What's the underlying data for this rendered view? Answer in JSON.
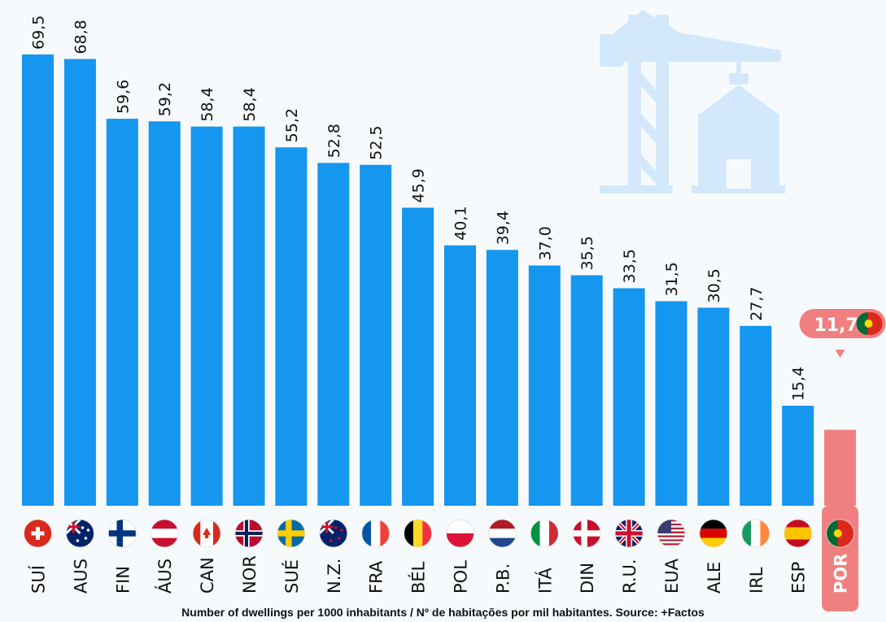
{
  "chart_data": {
    "type": "bar",
    "categories": [
      "SUÍ",
      "AUS",
      "FIN",
      "ÁUS",
      "CAN",
      "NOR",
      "SUÉ",
      "N.Z.",
      "FRA",
      "BÉL",
      "POL",
      "P.B.",
      "ITÁ",
      "DIN",
      "R.U.",
      "EUA",
      "ALE",
      "IRL",
      "ESP",
      "POR"
    ],
    "values": [
      69.5,
      68.8,
      59.6,
      59.2,
      58.4,
      58.4,
      55.2,
      52.8,
      52.5,
      45.9,
      40.1,
      39.4,
      37.0,
      35.5,
      33.5,
      31.5,
      30.5,
      27.7,
      15.4,
      11.7
    ],
    "value_labels": [
      "69,5",
      "68,8",
      "59,6",
      "59,2",
      "58,4",
      "58,4",
      "55,2",
      "52,8",
      "52,5",
      "45,9",
      "40,1",
      "39,4",
      "37,0",
      "35,5",
      "33,5",
      "31,5",
      "30,5",
      "27,7",
      "15,4",
      "11,7"
    ],
    "highlight": {
      "category": "POR",
      "value_label": "11,7",
      "color": "#f08080"
    },
    "flags": [
      "switzerland",
      "australia",
      "finland",
      "austria",
      "canada",
      "norway",
      "sweden",
      "new-zealand",
      "france",
      "belgium",
      "poland",
      "netherlands",
      "italy",
      "denmark",
      "united-kingdom",
      "usa",
      "germany",
      "ireland",
      "spain",
      "portugal"
    ],
    "colors": {
      "bar": "#1596ef",
      "highlight": "#f08080",
      "background": "#f7fafc",
      "crane_icon": "#d3e9fb"
    },
    "ylim": [
      0,
      72
    ],
    "grid": false,
    "legend": "none"
  },
  "caption": "Number of dwellings per 1000 inhabitants / Nº de habitações por mil habitantes. Source: +Factos",
  "decor": {
    "icon": "crane-house-icon"
  }
}
